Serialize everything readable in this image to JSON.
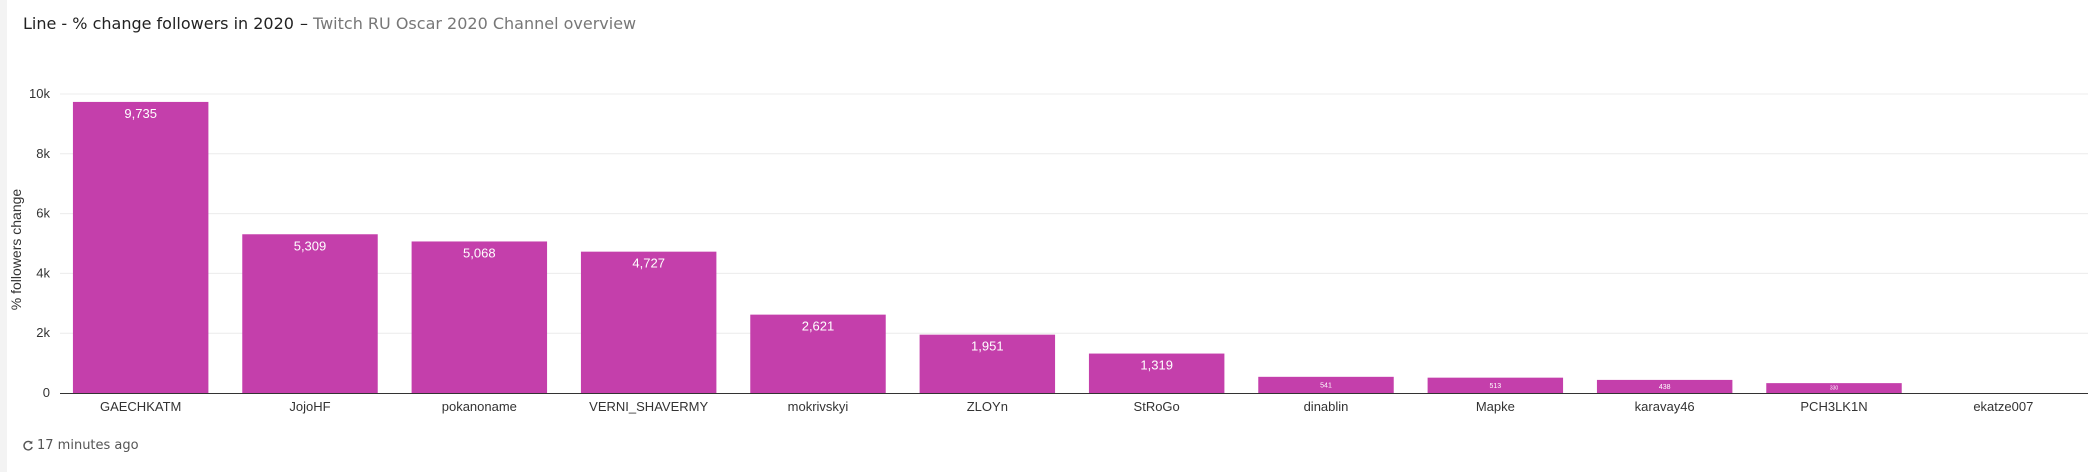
{
  "card": {
    "title": "Line - % change followers in 2020",
    "separator": "–",
    "subtitle": "Twitch RU Oscar 2020 Channel overview"
  },
  "footer": {
    "updated": "17 minutes ago",
    "icon": "refresh-icon"
  },
  "colors": {
    "bar": "#c43fab",
    "grid": "#ececec",
    "axis": "#333333",
    "label_inside": "#ffffff"
  },
  "chart_data": {
    "type": "bar",
    "title": "",
    "xlabel": "",
    "ylabel": "% followers change",
    "ylim": [
      0,
      10000
    ],
    "yticks": [
      0,
      2000,
      4000,
      6000,
      8000,
      10000
    ],
    "ytick_labels": [
      "0",
      "2k",
      "4k",
      "6k",
      "8k",
      "10k"
    ],
    "grid": true,
    "categories": [
      "GAECHKATM",
      "JojoHF",
      "pokanoname",
      "VERNI_SHAVERMY",
      "mokrivskyi",
      "ZLOYn",
      "StRoGo",
      "dinablin",
      "Mapke",
      "karavay46",
      "PCH3LK1N",
      "ekatze007"
    ],
    "values": [
      9735,
      5309,
      5068,
      4727,
      2621,
      1951,
      1319,
      541,
      513,
      438,
      330,
      0
    ],
    "data_labels": [
      "9,735",
      "5,309",
      "5,068",
      "4,727",
      "2,621",
      "1,951",
      "1,319",
      "541",
      "513",
      "438",
      "330",
      ""
    ]
  }
}
